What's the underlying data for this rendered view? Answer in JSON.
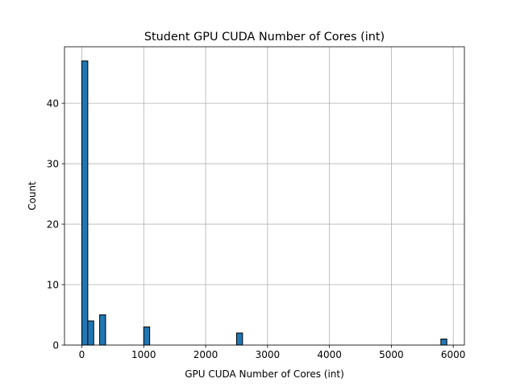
{
  "chart_data": {
    "type": "bar",
    "subtype": "histogram",
    "title": "Student GPU CUDA Number of Cores (int)",
    "xlabel": "GPU CUDA Number of Cores (int)",
    "ylabel": "Count",
    "xlim": [
      -280,
      6180
    ],
    "ylim": [
      0,
      49.35
    ],
    "xticks": [
      0,
      1000,
      2000,
      3000,
      4000,
      5000,
      6000
    ],
    "yticks": [
      0,
      10,
      20,
      30,
      40
    ],
    "grid": true,
    "bar_color": "#1f77b4",
    "edge_color": "#000000",
    "bins": [
      {
        "x0": 0,
        "x1": 96,
        "value": 47
      },
      {
        "x0": 96,
        "x1": 192,
        "value": 4
      },
      {
        "x0": 288,
        "x1": 384,
        "value": 5
      },
      {
        "x0": 1000,
        "x1": 1096,
        "value": 3
      },
      {
        "x0": 2500,
        "x1": 2596,
        "value": 2
      },
      {
        "x0": 5800,
        "x1": 5896,
        "value": 1
      }
    ]
  }
}
